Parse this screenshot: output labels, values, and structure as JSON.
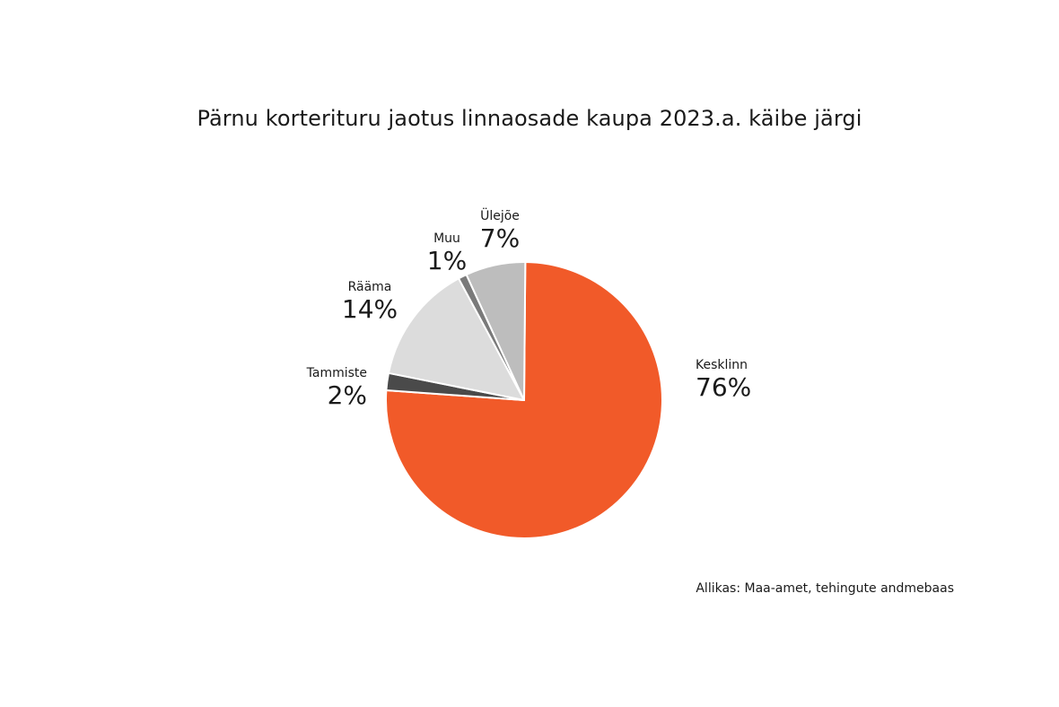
{
  "chart_data": {
    "type": "pie",
    "title": "Pärnu korterituru jaotus linnaosade kaupa 2023.a. käibe järgi",
    "source": "Allikas: Maa-amet, tehingute andmebaas",
    "slices": [
      {
        "name": "Kesklinn",
        "value": 76,
        "label": "76%",
        "color": "#f15a29"
      },
      {
        "name": "Tammiste",
        "value": 2,
        "label": "2%",
        "color": "#4a4a4a"
      },
      {
        "name": "Rääma",
        "value": 14,
        "label": "14%",
        "color": "#dcdcdc"
      },
      {
        "name": "Muu",
        "value": 1,
        "label": "1%",
        "color": "#7a7a7a"
      },
      {
        "name": "Ülejõe",
        "value": 7,
        "label": "7%",
        "color": "#bdbdbd"
      }
    ]
  }
}
